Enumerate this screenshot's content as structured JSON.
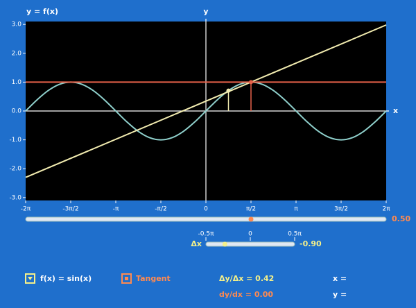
{
  "chart_data": {
    "type": "line",
    "title": "y = f(x)",
    "x_label": "x",
    "y_label": "y",
    "xlim": [
      -6.2832,
      6.2832
    ],
    "ylim": [
      -3.1,
      3.1
    ],
    "xticks": [
      {
        "value": -6.2832,
        "label": "-2π"
      },
      {
        "value": -4.7124,
        "label": "-3π/2"
      },
      {
        "value": -3.1416,
        "label": "-π"
      },
      {
        "value": -1.5708,
        "label": "-π/2"
      },
      0,
      {
        "value": 1.5708,
        "label": "π/2"
      },
      {
        "value": 3.1416,
        "label": "π"
      },
      {
        "value": 4.7124,
        "label": "3π/2"
      },
      {
        "value": 6.2832,
        "label": "2π"
      }
    ],
    "yticks": [
      {
        "value": 3,
        "label": "3.0"
      },
      {
        "value": 2,
        "label": "2.0"
      },
      {
        "value": 1,
        "label": "1.0"
      },
      {
        "value": 0,
        "label": "0.0"
      },
      {
        "value": -1,
        "label": "-1.0"
      },
      {
        "value": -2,
        "label": "-2.0"
      },
      {
        "value": -3,
        "label": "-3.0"
      }
    ],
    "series": [
      {
        "name": "f(x) = sin(x)",
        "color": "#8fd0cc",
        "x": [
          -6.2832,
          -5.8905,
          -5.4978,
          -5.1051,
          -4.7124,
          -4.3197,
          -3.927,
          -3.5343,
          -3.1416,
          -2.7489,
          -2.3562,
          -1.9635,
          -1.5708,
          -1.1781,
          -0.7854,
          -0.3927,
          0,
          0.3927,
          0.7854,
          1.1781,
          1.5708,
          1.9635,
          2.3562,
          2.7489,
          3.1416,
          3.5343,
          3.927,
          4.3197,
          4.7124,
          5.1051,
          5.4978,
          5.8905,
          6.2832
        ],
        "values": [
          0,
          0.3827,
          0.7071,
          0.9239,
          1,
          0.9239,
          0.7071,
          0.3827,
          0,
          -0.3827,
          -0.7071,
          -0.9239,
          -1,
          -0.9239,
          -0.7071,
          -0.3827,
          0,
          0.3827,
          0.7071,
          0.9239,
          1,
          0.9239,
          0.7071,
          0.3827,
          0,
          -0.3827,
          -0.7071,
          -0.9239,
          -1,
          -0.9239,
          -0.7071,
          -0.3827,
          0
        ]
      },
      {
        "color": "#f2ecb0",
        "x": [
          -6.2832,
          6.2832
        ],
        "values": [
          -2.3,
          2.98
        ]
      },
      {
        "name": "Tangent",
        "color": "#e8624a",
        "x": [
          -6.2832,
          6.2832
        ],
        "values": [
          1,
          1
        ]
      }
    ],
    "markers": [
      {
        "x": 0.7854,
        "y": 0.7071,
        "color": "#f2ecb0"
      },
      {
        "x": 1.5708,
        "y": 1,
        "color": "#e8624a"
      }
    ]
  },
  "controls": {
    "x_slider": {
      "range": [
        -2,
        2
      ],
      "value": 0.5,
      "label": "0.50",
      "color": "#ff8a50"
    },
    "dx_slider": {
      "name": "Δx",
      "range": [
        -1.5708,
        1.5708
      ],
      "ticks": [
        {
          "value": -1.5708,
          "label": "-0.5π"
        },
        0,
        {
          "value": 1.5708,
          "label": "0.5π"
        }
      ],
      "value": -0.9,
      "label": "-0.90",
      "color": "#f4f08a"
    }
  },
  "readouts": {
    "secant_slope": "Δy/Δx = 0.42",
    "tangent_slope": "dy/dx = 0.00",
    "x": "x =",
    "y": "y ="
  }
}
